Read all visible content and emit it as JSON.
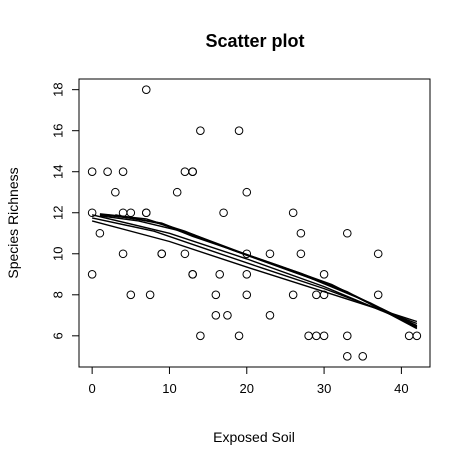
{
  "chart_data": {
    "type": "scatter",
    "title": "Scatter plot",
    "xlabel": "Exposed Soil",
    "ylabel": "Species Richness",
    "xlim": [
      -1.7,
      43.7
    ],
    "ylim": [
      4.48,
      18.52
    ],
    "xticks": [
      0,
      10,
      20,
      30,
      40
    ],
    "yticks": [
      6,
      8,
      10,
      12,
      14,
      16,
      18
    ],
    "grid": false,
    "legend": "none",
    "point_color": "#000000",
    "line_color": "#000000",
    "points": [
      {
        "x": 0,
        "y": 14
      },
      {
        "x": 0,
        "y": 12
      },
      {
        "x": 0,
        "y": 9
      },
      {
        "x": 1,
        "y": 11
      },
      {
        "x": 2,
        "y": 14
      },
      {
        "x": 3,
        "y": 13
      },
      {
        "x": 4,
        "y": 12
      },
      {
        "x": 4,
        "y": 14
      },
      {
        "x": 4,
        "y": 10
      },
      {
        "x": 5,
        "y": 12
      },
      {
        "x": 5,
        "y": 8
      },
      {
        "x": 7,
        "y": 18
      },
      {
        "x": 7,
        "y": 12
      },
      {
        "x": 7,
        "y": 12
      },
      {
        "x": 7.5,
        "y": 8
      },
      {
        "x": 9,
        "y": 10
      },
      {
        "x": 9,
        "y": 10
      },
      {
        "x": 11,
        "y": 13
      },
      {
        "x": 12,
        "y": 14
      },
      {
        "x": 12,
        "y": 10
      },
      {
        "x": 13,
        "y": 14
      },
      {
        "x": 13,
        "y": 14
      },
      {
        "x": 13,
        "y": 9
      },
      {
        "x": 13,
        "y": 9
      },
      {
        "x": 14,
        "y": 16
      },
      {
        "x": 14,
        "y": 6
      },
      {
        "x": 16,
        "y": 8
      },
      {
        "x": 16,
        "y": 7
      },
      {
        "x": 16.5,
        "y": 9
      },
      {
        "x": 17,
        "y": 12
      },
      {
        "x": 17.5,
        "y": 7
      },
      {
        "x": 19,
        "y": 16
      },
      {
        "x": 19,
        "y": 6
      },
      {
        "x": 20,
        "y": 13
      },
      {
        "x": 20,
        "y": 10
      },
      {
        "x": 20,
        "y": 9
      },
      {
        "x": 20,
        "y": 8
      },
      {
        "x": 23,
        "y": 10
      },
      {
        "x": 23,
        "y": 7
      },
      {
        "x": 26,
        "y": 12
      },
      {
        "x": 26,
        "y": 8
      },
      {
        "x": 27,
        "y": 11
      },
      {
        "x": 27,
        "y": 10
      },
      {
        "x": 28,
        "y": 6
      },
      {
        "x": 29,
        "y": 6
      },
      {
        "x": 29,
        "y": 8
      },
      {
        "x": 30,
        "y": 9
      },
      {
        "x": 30,
        "y": 8
      },
      {
        "x": 30,
        "y": 6
      },
      {
        "x": 33,
        "y": 11
      },
      {
        "x": 33,
        "y": 6
      },
      {
        "x": 33,
        "y": 5
      },
      {
        "x": 35,
        "y": 5
      },
      {
        "x": 37,
        "y": 10
      },
      {
        "x": 37,
        "y": 8
      },
      {
        "x": 41,
        "y": 6
      },
      {
        "x": 42,
        "y": 6
      }
    ],
    "fit_lines": [
      [
        [
          1,
          11.9
        ],
        [
          5,
          11.75
        ],
        [
          9,
          11.45
        ],
        [
          13,
          10.85
        ],
        [
          20,
          9.95
        ],
        [
          27,
          9.05
        ],
        [
          33,
          8.15
        ],
        [
          42,
          6.35
        ]
      ],
      [
        [
          1,
          11.85
        ],
        [
          6,
          11.6
        ],
        [
          11,
          11.15
        ],
        [
          17,
          10.35
        ],
        [
          24,
          9.45
        ],
        [
          31,
          8.5
        ],
        [
          42,
          6.4
        ]
      ],
      [
        [
          0,
          11.75
        ],
        [
          8,
          11.1
        ],
        [
          15,
          10.2
        ],
        [
          22,
          9.3
        ],
        [
          30,
          8.3
        ],
        [
          42,
          6.6
        ]
      ],
      [
        [
          2,
          11.9
        ],
        [
          9,
          11.5
        ],
        [
          14,
          10.75
        ],
        [
          21,
          9.8
        ],
        [
          28,
          8.85
        ],
        [
          36,
          7.6
        ],
        [
          42,
          6.45
        ]
      ],
      [
        [
          0,
          11.9
        ],
        [
          10,
          11.0
        ],
        [
          20,
          9.75
        ],
        [
          30,
          8.4
        ],
        [
          42,
          6.5
        ]
      ],
      [
        [
          1,
          11.95
        ],
        [
          7,
          11.7
        ],
        [
          12,
          11.1
        ],
        [
          18,
          10.2
        ],
        [
          25,
          9.25
        ],
        [
          32,
          8.3
        ],
        [
          42,
          6.45
        ]
      ],
      [
        [
          0,
          11.6
        ],
        [
          10,
          10.6
        ],
        [
          20,
          9.35
        ],
        [
          30,
          8.15
        ],
        [
          42,
          6.7
        ]
      ],
      [
        [
          3,
          11.9
        ],
        [
          8,
          11.55
        ],
        [
          13,
          10.95
        ],
        [
          19,
          10.1
        ],
        [
          26,
          9.15
        ],
        [
          34,
          7.95
        ],
        [
          42,
          6.5
        ]
      ]
    ]
  }
}
